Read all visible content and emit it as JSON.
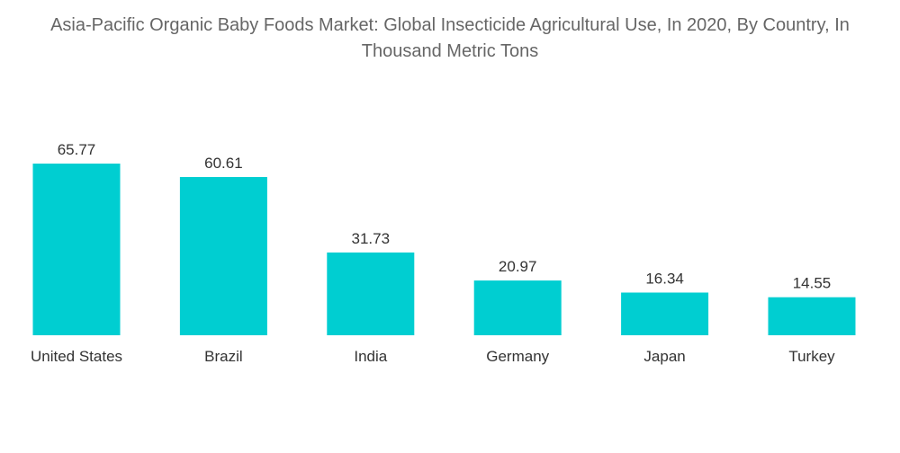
{
  "title": "Asia-Pacific Organic Baby Foods Market: Global Insecticide Agricultural Use, In 2020, By Country, In Thousand Metric Tons",
  "chart_data": {
    "type": "bar",
    "title": "Asia-Pacific Organic Baby Foods Market: Global Insecticide Agricultural Use, In 2020, By Country, In Thousand Metric Tons",
    "categories": [
      "United States",
      "Brazil",
      "India",
      "Germany",
      "Japan",
      "Turkey"
    ],
    "values": [
      65.77,
      60.61,
      31.73,
      20.97,
      16.34,
      14.55
    ],
    "value_labels": [
      "65.77",
      "60.61",
      "31.73",
      "20.97",
      "16.34",
      "14.55"
    ],
    "xlabel": "",
    "ylabel": "",
    "ylim": [
      0,
      65.77
    ],
    "grid": false,
    "legend": "none",
    "bar_color": "#00CED1"
  }
}
